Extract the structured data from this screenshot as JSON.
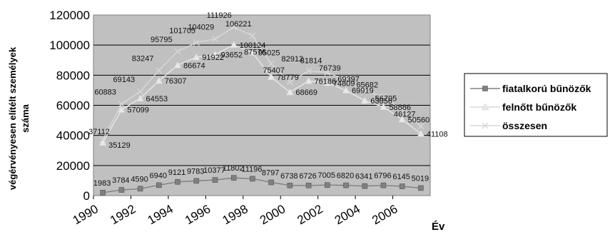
{
  "chart_data": {
    "type": "line",
    "xlabel": "Év",
    "ylabel_line1": "végérvényesen elítélt személyek",
    "ylabel_line2": "száma",
    "ylim": [
      0,
      120000
    ],
    "yticks": [
      "0",
      "20000",
      "40000",
      "60000",
      "80000",
      "100000",
      "120000"
    ],
    "xlim": [
      1990,
      2008
    ],
    "xticks": [
      "1990",
      "1992",
      "1994",
      "1996",
      "1998",
      "2000",
      "2002",
      "2004",
      "2006"
    ],
    "grid": true,
    "legend_position": "right",
    "plot_background": "#c0c0c0",
    "series": [
      {
        "name": "fiatalkorú bűnözők",
        "color": "#808080",
        "marker": "square",
        "x": [
          1990.5,
          1991.5,
          1992.5,
          1993.5,
          1994.5,
          1995.5,
          1996.5,
          1997.5,
          1998.5,
          1999.5,
          2000.5,
          2001.5,
          2002.5,
          2003.5,
          2004.5,
          2005.5,
          2006.5,
          2007.5
        ],
        "values": [
          1983,
          3784,
          4590,
          6940,
          9121,
          9783,
          10377,
          11802,
          11196,
          8797,
          6738,
          6726,
          7005,
          6820,
          6341,
          6796,
          6145,
          5019
        ],
        "labels": [
          "1983",
          "3784",
          "4590",
          "6940",
          "9121",
          "9783",
          "10377",
          "11802",
          "11196",
          "8797",
          "6738",
          "6726",
          "7005",
          "6820",
          "6341",
          "6796",
          "6145",
          "5019"
        ]
      },
      {
        "name": "felnőtt bűnözők",
        "color": "#e8e8e8",
        "marker": "triangle",
        "x": [
          1990.5,
          1991.5,
          1992.5,
          1993.5,
          1994.5,
          1995.5,
          1996.5,
          1997.5,
          1998.5,
          1999.5,
          2000.5,
          2001.5,
          2002.5,
          2003.5,
          2004.5,
          2005.5,
          2006.5,
          2007.5
        ],
        "values": [
          35129,
          57099,
          64553,
          76307,
          86674,
          91922,
          93652,
          100124,
          95025,
          78779,
          68669,
          76186,
          74809,
          69919,
          63056,
          58886,
          50560,
          41108
        ],
        "labels": [
          "35129",
          "57099",
          "64553",
          "76307",
          "86674",
          "91922",
          "93652",
          "100124",
          "95025",
          "78779",
          "68669",
          "76186",
          "74809",
          "69919",
          "63056",
          "58886",
          "50560",
          "41108"
        ]
      },
      {
        "name": "összesen",
        "color": "#d8d8d8",
        "marker": "x",
        "x": [
          1990.5,
          1991.5,
          1992.5,
          1993.5,
          1994.5,
          1995.5,
          1996.5,
          1997.5,
          1998.5,
          1999.5,
          2000.5,
          2001.5,
          2002.5,
          2003.5,
          2004.5,
          2005.5,
          2006.5,
          2007.5
        ],
        "values": [
          37112,
          60883,
          69143,
          83247,
          95795,
          101705,
          104029,
          111926,
          106221,
          87576,
          75407,
          82912,
          81814,
          76739,
          69397,
          65682,
          56705,
          46127
        ],
        "labels": [
          "37112",
          "60883",
          "69143",
          "83247",
          "95795",
          "101705",
          "104029",
          "111926",
          "106221",
          "87576",
          "75407",
          "82912",
          "81814",
          "76739",
          "69397",
          "65682",
          "56705",
          "46127"
        ]
      }
    ]
  }
}
